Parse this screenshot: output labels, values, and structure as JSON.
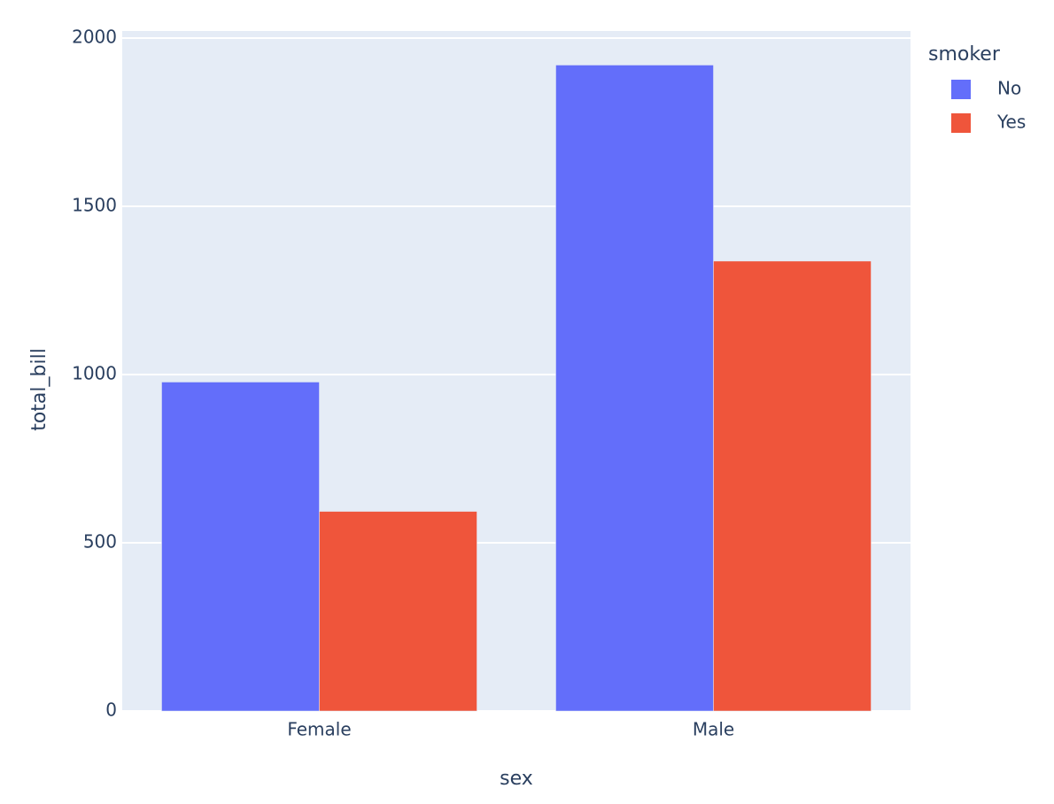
{
  "chart_data": {
    "type": "bar",
    "x_label": "sex",
    "y_label": "total_bill",
    "categories": [
      "Female",
      "Male"
    ],
    "legend_title": "smoker",
    "series": [
      {
        "name": "No",
        "color": "#636efa",
        "values": [
          977.68,
          1919.75
        ]
      },
      {
        "name": "Yes",
        "color": "#ef553b",
        "values": [
          593.27,
          1337.07
        ]
      }
    ],
    "ylim": [
      0,
      2021
    ],
    "yticks": [
      0,
      500,
      1000,
      1500,
      2000
    ],
    "grid": true,
    "legend": "right"
  }
}
